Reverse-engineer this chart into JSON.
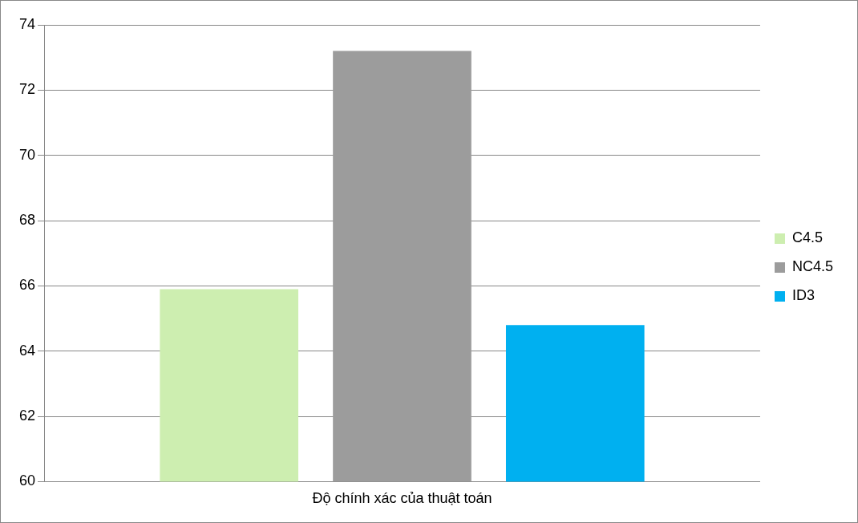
{
  "chart_data": {
    "type": "bar",
    "categories": [
      "Độ chính xác của thuật toán"
    ],
    "series": [
      {
        "name": "C4.5",
        "color": "#cdeeb0",
        "values": [
          65.9
        ]
      },
      {
        "name": "NC4.5",
        "color": "#9c9c9c",
        "values": [
          73.2
        ]
      },
      {
        "name": "ID3",
        "color": "#00b0f0",
        "values": [
          64.8
        ]
      }
    ],
    "ylim": [
      60,
      74
    ],
    "yticks": [
      60,
      62,
      64,
      66,
      68,
      70,
      72,
      74
    ],
    "grid": "y",
    "legend": "right"
  }
}
